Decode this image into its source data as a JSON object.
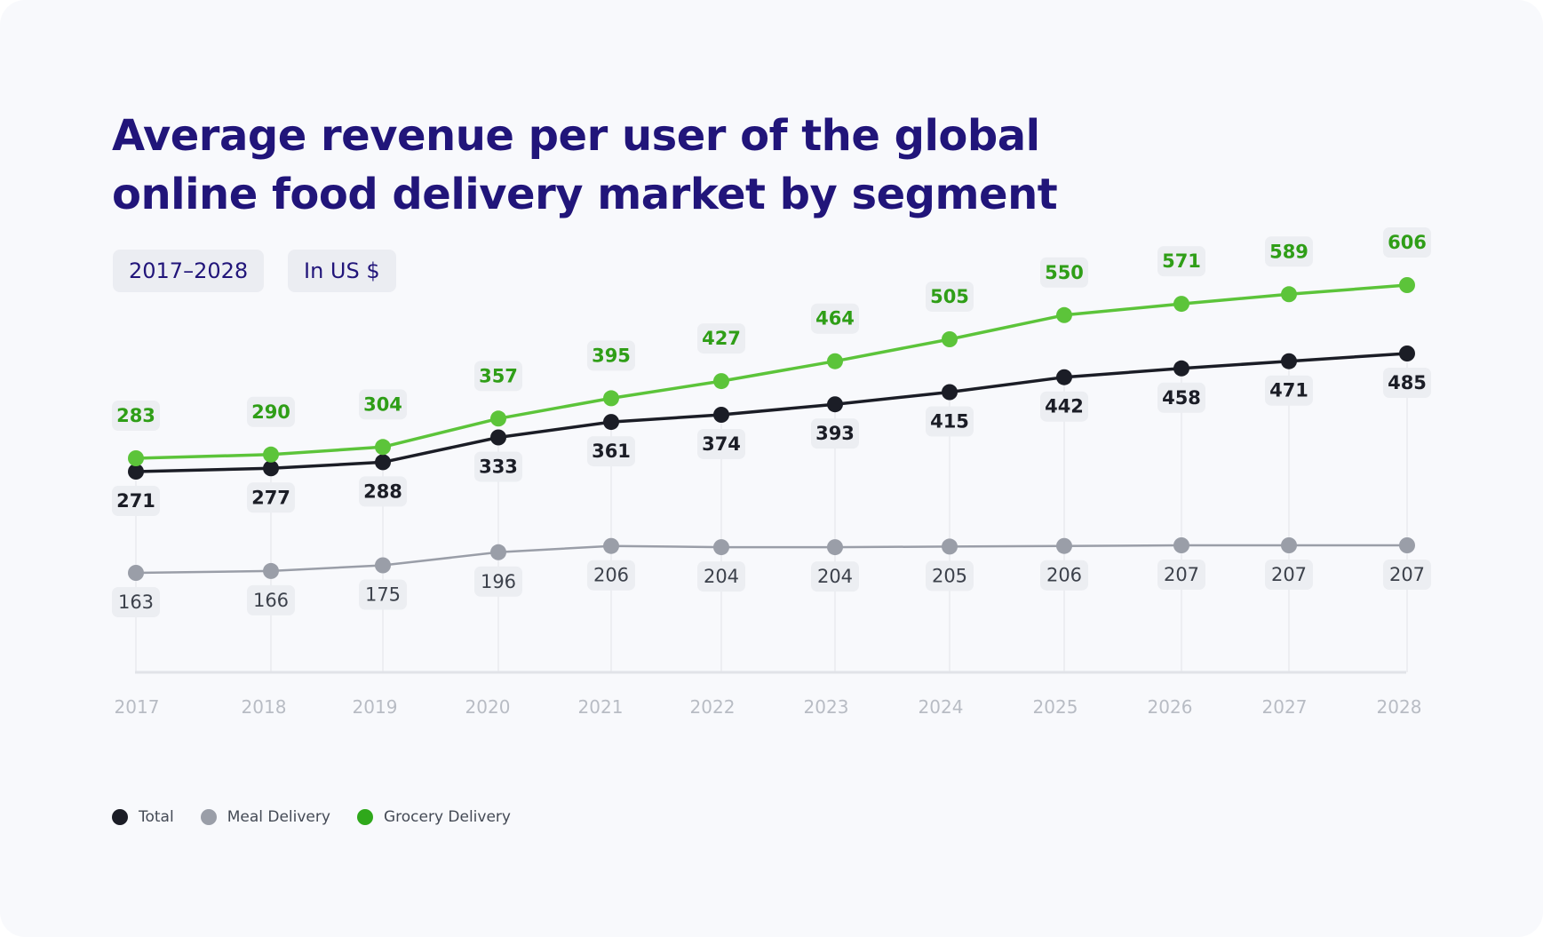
{
  "chips": {
    "period": "2017–2028",
    "unit": "In US $"
  },
  "colors": {
    "total": "#1b1d26",
    "meal": "#9a9ea8",
    "grocery": "#5cc43a",
    "grocery_label": "#2f9e17",
    "axis_label": "#b8bcc4",
    "title": "#21157a"
  },
  "chart_data": {
    "type": "line",
    "title": "Average revenue per user of the global online food delivery market by segment",
    "xlabel": "",
    "ylabel": "",
    "x": [
      "2017",
      "2018",
      "2019",
      "2020",
      "2021",
      "2022",
      "2023",
      "2024",
      "2025",
      "2026",
      "2027",
      "2028"
    ],
    "series": [
      {
        "name": "Total",
        "values": [
          271,
          277,
          288,
          333,
          361,
          374,
          393,
          415,
          442,
          458,
          471,
          485
        ]
      },
      {
        "name": "Meal Delivery",
        "values": [
          163,
          166,
          175,
          196,
          206,
          204,
          204,
          205,
          206,
          207,
          207,
          207
        ]
      },
      {
        "name": "Grocery Delivery",
        "values": [
          283,
          290,
          304,
          357,
          395,
          427,
          464,
          505,
          550,
          571,
          589,
          606
        ]
      }
    ],
    "legend_position": "bottom-left",
    "grid": false
  }
}
